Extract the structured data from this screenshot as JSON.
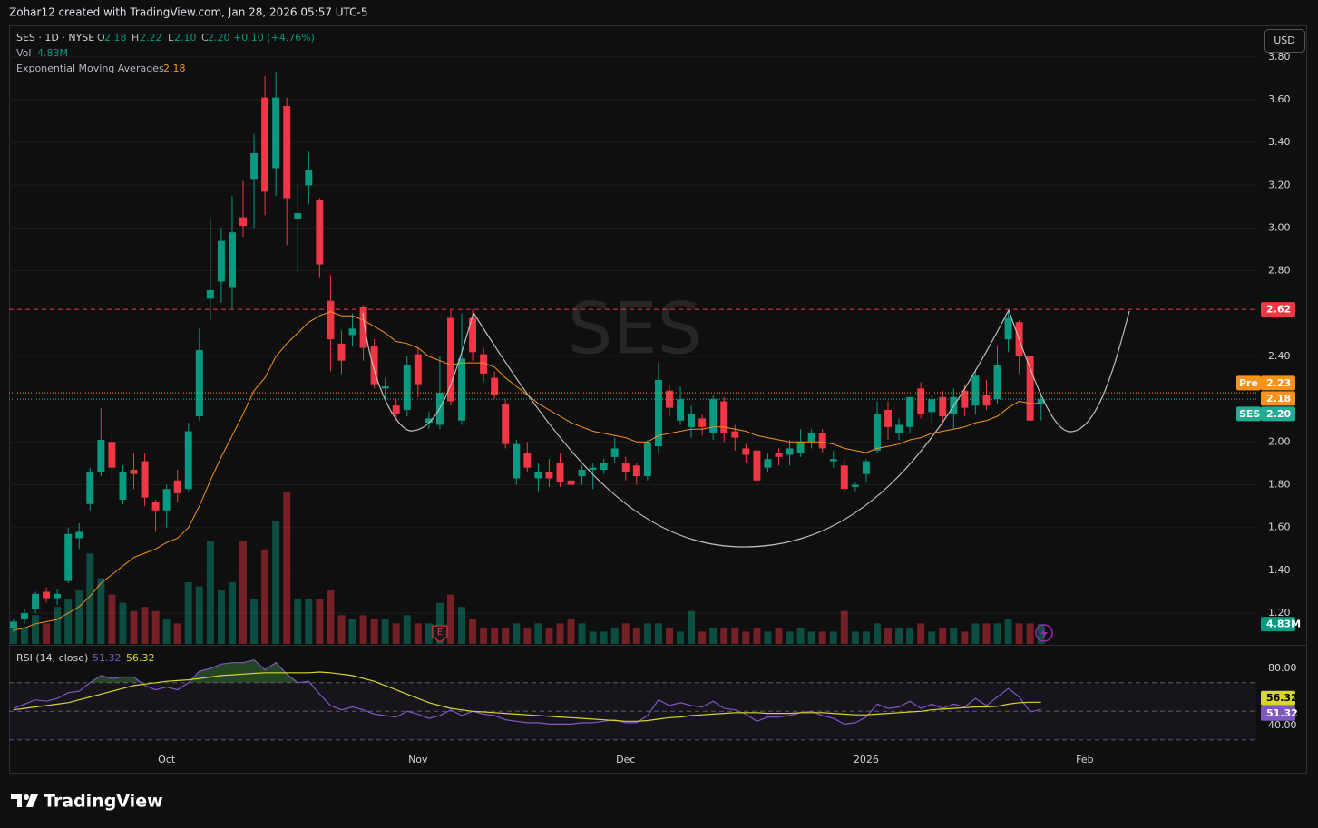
{
  "header": {
    "credit": "Zohar12 created with TradingView.com, Jan 28, 2026 05:57 UTC-5",
    "symbol": "SES · 1D · NYSE",
    "o_key": "O",
    "open": "2.18",
    "h_key": "H",
    "high": "2.22",
    "l_key": "L",
    "low": "2.10",
    "c_key": "C",
    "close": "2.20",
    "change": "+0.10 (+4.76%)",
    "vol_key": "Vol",
    "vol": "4.83M",
    "ema_key": "Exponential Moving Averages",
    "ema": "2.18",
    "currency": "USD",
    "watermark": "SES"
  },
  "chart_data": [
    {
      "type": "candlestick",
      "xlim": [
        -0.41,
        113.69
      ],
      "xticks": [
        {
          "value": 14,
          "label": "Oct"
        },
        {
          "value": 37,
          "label": "Nov"
        },
        {
          "value": 56,
          "label": "Dec"
        },
        {
          "value": 78,
          "label": "2026"
        },
        {
          "value": 98,
          "label": "Feb"
        }
      ],
      "ylim": [
        1.056,
        3.939
      ],
      "yticks": [
        {
          "value": 1.2,
          "label": "1.20"
        },
        {
          "value": 1.4,
          "label": "1.40"
        },
        {
          "value": 1.6,
          "label": "1.60"
        },
        {
          "value": 1.8,
          "label": "1.80"
        },
        {
          "value": 2.0,
          "label": "2.00"
        },
        {
          "value": 2.4,
          "label": "2.40"
        },
        {
          "value": 2.8,
          "label": "2.80"
        },
        {
          "value": 3.0,
          "label": "3.00"
        },
        {
          "value": 3.2,
          "label": "3.20"
        },
        {
          "value": 3.4,
          "label": "3.40"
        },
        {
          "value": 3.6,
          "label": "3.60"
        },
        {
          "value": 3.8,
          "label": "3.80"
        }
      ],
      "grid": true,
      "up_color": "#089981",
      "down_color": "#f23645",
      "open": [
        1.13,
        1.17,
        1.22,
        1.3,
        1.27,
        1.35,
        1.55,
        1.71,
        1.86,
        2.0,
        1.73,
        1.87,
        1.91,
        1.72,
        1.68,
        1.82,
        1.78,
        2.12,
        2.67,
        2.75,
        2.72,
        3.05,
        3.23,
        3.61,
        3.28,
        3.57,
        3.04,
        3.2,
        3.13,
        2.66,
        2.46,
        2.5,
        2.63,
        2.45,
        2.25,
        2.17,
        2.15,
        2.41,
        2.09,
        2.08,
        2.58,
        2.1,
        2.58,
        2.41,
        2.3,
        2.18,
        1.83,
        1.95,
        1.83,
        1.86,
        1.9,
        1.82,
        1.84,
        1.87,
        1.87,
        1.93,
        1.9,
        1.89,
        1.84,
        1.98,
        2.24,
        2.1,
        2.07,
        2.11,
        2.04,
        2.19,
        2.05,
        1.97,
        1.96,
        1.88,
        1.95,
        1.94,
        1.95,
        2.0,
        2.04,
        1.91,
        1.89,
        1.79,
        1.85,
        1.96,
        2.15,
        2.04,
        2.07,
        2.25,
        2.14,
        2.21,
        2.13,
        2.24,
        2.17,
        2.22,
        2.2,
        2.48,
        2.56,
        2.4,
        2.18
      ],
      "high": [
        1.17,
        1.22,
        1.3,
        1.32,
        1.31,
        1.6,
        1.62,
        1.88,
        2.16,
        2.06,
        1.89,
        1.95,
        1.95,
        1.73,
        1.8,
        1.87,
        2.09,
        2.53,
        3.05,
        3.0,
        3.15,
        3.22,
        3.44,
        3.71,
        3.73,
        3.61,
        3.2,
        3.36,
        3.14,
        2.78,
        2.52,
        2.6,
        2.64,
        2.48,
        2.3,
        2.2,
        2.4,
        2.44,
        2.14,
        2.4,
        2.62,
        2.6,
        2.62,
        2.44,
        2.33,
        2.2,
        2.01,
        2.0,
        1.9,
        1.92,
        1.95,
        1.83,
        1.89,
        1.9,
        1.92,
        2.02,
        1.93,
        1.9,
        2.01,
        2.37,
        2.27,
        2.26,
        2.17,
        2.13,
        2.22,
        2.21,
        2.08,
        1.99,
        1.98,
        1.95,
        1.97,
        2.01,
        2.06,
        2.06,
        2.06,
        1.96,
        1.92,
        1.81,
        1.92,
        2.19,
        2.19,
        2.11,
        2.21,
        2.28,
        2.22,
        2.24,
        2.25,
        2.27,
        2.34,
        2.29,
        2.45,
        2.62,
        2.57,
        2.4,
        2.22
      ],
      "low": [
        1.11,
        1.15,
        1.2,
        1.25,
        1.24,
        1.34,
        1.5,
        1.68,
        1.84,
        1.83,
        1.71,
        1.78,
        1.7,
        1.58,
        1.6,
        1.72,
        1.77,
        2.1,
        2.57,
        2.65,
        2.62,
        2.96,
        3.0,
        3.06,
        3.15,
        2.92,
        2.8,
        3.11,
        2.77,
        2.33,
        2.32,
        2.45,
        2.38,
        2.25,
        2.2,
        2.1,
        2.12,
        2.21,
        2.06,
        2.06,
        2.17,
        2.08,
        2.38,
        2.28,
        2.2,
        1.97,
        1.8,
        1.86,
        1.77,
        1.79,
        1.79,
        1.67,
        1.8,
        1.78,
        1.85,
        1.9,
        1.82,
        1.8,
        1.82,
        1.95,
        2.12,
        2.08,
        2.02,
        2.03,
        2.01,
        2.0,
        1.96,
        1.9,
        1.8,
        1.86,
        1.89,
        1.89,
        1.93,
        1.97,
        1.95,
        1.88,
        1.77,
        1.77,
        1.81,
        1.95,
        2.01,
        2.01,
        2.04,
        2.11,
        2.09,
        2.08,
        2.06,
        2.12,
        2.13,
        2.15,
        2.18,
        2.42,
        2.32,
        2.1,
        2.1
      ],
      "close": [
        1.16,
        1.2,
        1.29,
        1.27,
        1.29,
        1.57,
        1.58,
        1.86,
        2.01,
        1.88,
        1.86,
        1.85,
        1.74,
        1.68,
        1.78,
        1.76,
        2.05,
        2.43,
        2.71,
        2.94,
        2.98,
        3.01,
        3.35,
        3.17,
        3.61,
        3.14,
        3.07,
        3.27,
        2.83,
        2.48,
        2.38,
        2.53,
        2.44,
        2.27,
        2.26,
        2.13,
        2.36,
        2.27,
        2.11,
        2.23,
        2.19,
        2.39,
        2.42,
        2.32,
        2.22,
        1.99,
        1.99,
        1.88,
        1.86,
        1.83,
        1.81,
        1.8,
        1.87,
        1.88,
        1.9,
        1.97,
        1.86,
        1.84,
        2.0,
        2.29,
        2.16,
        2.2,
        2.13,
        2.07,
        2.2,
        2.04,
        2.02,
        1.94,
        1.82,
        1.92,
        1.93,
        1.97,
        2.0,
        2.04,
        1.97,
        1.92,
        1.78,
        1.8,
        1.91,
        2.13,
        2.07,
        2.08,
        2.21,
        2.13,
        2.2,
        2.12,
        2.21,
        2.16,
        2.31,
        2.17,
        2.36,
        2.58,
        2.4,
        2.1,
        2.2
      ],
      "volume": {
        "lim": [
          0,
          150
        ],
        "values": [
          5,
          4,
          7,
          5,
          9,
          11,
          13,
          22,
          16,
          12,
          10,
          8,
          9,
          8,
          6,
          5,
          15,
          14,
          25,
          13,
          15,
          25,
          11,
          23,
          30,
          37,
          11,
          11,
          11,
          13,
          7,
          6,
          7,
          6,
          6,
          5,
          7,
          5,
          5,
          10,
          12,
          9,
          6,
          4,
          4,
          4,
          5,
          4,
          5,
          4,
          5,
          6,
          5,
          3,
          3,
          4,
          5,
          4,
          5,
          5,
          4,
          3,
          8,
          3,
          4,
          4,
          4,
          3,
          4,
          3,
          4,
          3,
          4,
          3,
          3,
          3,
          8,
          3,
          3,
          5,
          4,
          4,
          4,
          5,
          3,
          4,
          4,
          3,
          5,
          5,
          5,
          6,
          5,
          5,
          4.83
        ],
        "last_label": "4.83M"
      },
      "ema": {
        "color": "#f7931a",
        "values": [
          1.12,
          1.13,
          1.15,
          1.16,
          1.17,
          1.2,
          1.23,
          1.28,
          1.34,
          1.38,
          1.42,
          1.46,
          1.48,
          1.5,
          1.53,
          1.55,
          1.6,
          1.7,
          1.82,
          1.93,
          2.03,
          2.13,
          2.24,
          2.3,
          2.4,
          2.46,
          2.51,
          2.56,
          2.59,
          2.61,
          2.59,
          2.59,
          2.57,
          2.54,
          2.51,
          2.47,
          2.46,
          2.44,
          2.4,
          2.38,
          2.36,
          2.37,
          2.37,
          2.37,
          2.35,
          2.3,
          2.26,
          2.22,
          2.18,
          2.15,
          2.12,
          2.09,
          2.07,
          2.05,
          2.04,
          2.03,
          2.02,
          2.0,
          2.0,
          2.03,
          2.04,
          2.05,
          2.06,
          2.06,
          2.07,
          2.07,
          2.06,
          2.05,
          2.03,
          2.02,
          2.01,
          2.0,
          2.0,
          2.0,
          2.0,
          1.99,
          1.97,
          1.96,
          1.95,
          1.97,
          1.98,
          1.99,
          2.01,
          2.02,
          2.04,
          2.05,
          2.06,
          2.07,
          2.09,
          2.1,
          2.12,
          2.16,
          2.19,
          2.18,
          2.18
        ],
        "last_label": "2.18"
      },
      "price_lines": [
        {
          "value": 2.62,
          "label": "2.62",
          "color": "#f23645",
          "style": "dashed"
        },
        {
          "name": "Pre",
          "value": 2.23,
          "label": "2.23",
          "color": "#f7931a",
          "style": "dotted"
        },
        {
          "name": "SES",
          "value": 2.2,
          "label": "2.20",
          "color": "#22ab94",
          "style": "dotted"
        }
      ],
      "earnings": {
        "label": "E",
        "index": 39
      }
    },
    {
      "type": "line",
      "title": "RSI (14, close)",
      "ylim": [
        27.3,
        95.9
      ],
      "yticks": [
        {
          "value": 80,
          "label": "80.00"
        },
        {
          "value": 40,
          "label": "40.00"
        }
      ],
      "levels": [
        70,
        50,
        30
      ],
      "series": [
        {
          "color": "#7e57c2",
          "last_label": "51.32",
          "values": [
            52,
            55,
            58,
            57,
            59,
            63,
            64,
            70,
            75,
            73,
            74,
            74,
            68,
            65,
            67,
            65,
            70,
            78,
            80,
            83,
            84,
            84,
            86,
            79,
            84,
            76,
            70,
            71,
            62,
            54,
            51,
            53,
            51,
            48,
            47,
            46,
            50,
            48,
            45,
            47,
            51,
            47,
            50,
            48,
            47,
            44,
            43,
            42,
            42,
            41,
            41,
            41,
            42,
            42,
            43,
            44,
            42,
            42,
            47,
            58,
            54,
            56,
            54,
            53,
            57,
            52,
            51,
            48,
            43,
            46,
            46,
            47,
            49,
            50,
            47,
            45,
            41,
            42,
            46,
            55,
            52,
            53,
            57,
            52,
            55,
            52,
            55,
            53,
            59,
            54,
            60,
            66,
            60,
            49.5,
            51.32
          ]
        },
        {
          "color": "#d6d62b",
          "last_label": "56.32",
          "values": [
            51,
            52,
            53,
            54,
            55,
            56,
            58,
            60,
            62,
            64,
            66,
            68,
            69,
            70,
            71,
            71.5,
            72,
            73,
            74,
            75,
            75.5,
            76,
            76.5,
            77,
            77,
            77,
            77,
            77,
            77.5,
            77,
            76,
            75,
            73,
            71,
            68,
            65,
            62,
            59,
            56,
            54,
            52,
            51,
            50,
            49.5,
            49,
            48.5,
            48,
            47.5,
            47,
            46.5,
            46,
            45.5,
            45,
            44.5,
            44,
            43.5,
            43,
            43,
            43.5,
            44.5,
            45.5,
            46,
            47,
            47.5,
            48,
            48.5,
            49,
            49,
            49,
            48.5,
            48.5,
            48.5,
            49,
            49,
            49,
            48.5,
            48,
            47.5,
            47.5,
            48,
            48.5,
            49,
            49.5,
            50,
            51,
            51.5,
            52,
            52.5,
            53,
            53,
            53.5,
            55,
            56,
            56.3,
            56.32
          ]
        }
      ]
    }
  ],
  "footer": {
    "brand": "TradingView"
  }
}
